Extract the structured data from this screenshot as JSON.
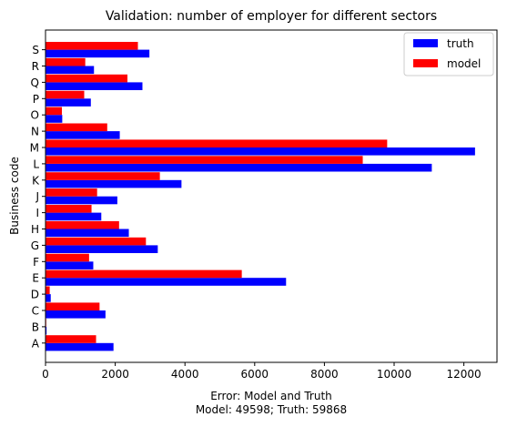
{
  "chart_data": {
    "type": "bar",
    "orientation": "horizontal",
    "title": "Validation: number of employer for different sectors",
    "ylabel": "Business code",
    "xlabel_lines": [
      "Error: Model and Truth",
      "Model: 49598; Truth: 59868"
    ],
    "categories": [
      "A",
      "B",
      "C",
      "D",
      "E",
      "F",
      "G",
      "H",
      "I",
      "J",
      "K",
      "L",
      "M",
      "N",
      "O",
      "P",
      "Q",
      "R",
      "S"
    ],
    "xlim": [
      0,
      12950
    ],
    "xticks": [
      0,
      2000,
      4000,
      6000,
      8000,
      10000,
      12000
    ],
    "xtick_labels": [
      "0",
      "2000",
      "4000",
      "6000",
      "8000",
      "10000",
      "12000"
    ],
    "legend_position": "top-right",
    "grid": false,
    "series": [
      {
        "name": "truth",
        "color": "#0000ff",
        "values": [
          1950,
          30,
          1720,
          150,
          6900,
          1370,
          3220,
          2390,
          1600,
          2060,
          3900,
          11080,
          12320,
          2130,
          480,
          1300,
          2780,
          1390,
          2980
        ]
      },
      {
        "name": "model",
        "color": "#ff0000",
        "values": [
          1450,
          20,
          1550,
          120,
          5630,
          1250,
          2880,
          2110,
          1320,
          1480,
          3280,
          9100,
          9800,
          1770,
          470,
          1110,
          2350,
          1140,
          2650
        ]
      }
    ]
  }
}
